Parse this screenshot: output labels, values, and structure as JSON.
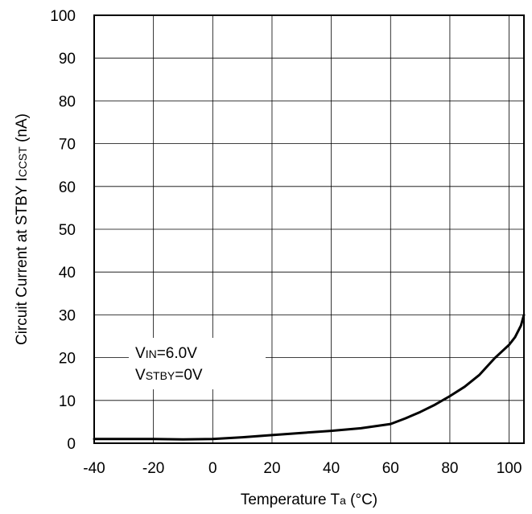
{
  "chart_data": {
    "type": "line",
    "title": "",
    "xlabel": {
      "main": "Temperature T",
      "sub": "a",
      "unit": " (°C)"
    },
    "ylabel": {
      "main": "Circuit Current at STBY I",
      "sub": "CCST",
      "unit": " (nA)"
    },
    "xlim": [
      -40,
      105
    ],
    "ylim": [
      0,
      100
    ],
    "x_ticks": [
      -40,
      -20,
      0,
      20,
      40,
      60,
      80,
      100
    ],
    "y_ticks": [
      0,
      10,
      20,
      30,
      40,
      50,
      60,
      70,
      80,
      90,
      100
    ],
    "grid": true,
    "series": [
      {
        "x": [
          -40,
          -20,
          -10,
          0,
          10,
          20,
          30,
          40,
          50,
          60,
          65,
          70,
          75,
          80,
          85,
          90,
          95,
          100,
          102,
          104,
          105
        ],
        "y": [
          1,
          1,
          0.9,
          1,
          1.4,
          1.9,
          2.4,
          2.9,
          3.5,
          4.5,
          5.8,
          7.3,
          9.0,
          11.0,
          13.2,
          16.0,
          19.8,
          23.0,
          24.8,
          27.5,
          30
        ]
      }
    ],
    "annotations": [
      {
        "line": 1,
        "main": "V",
        "sub": "IN",
        "rest": "=6.0V"
      },
      {
        "line": 2,
        "main": "V",
        "sub": "STBY",
        "rest": "=0V"
      }
    ]
  }
}
